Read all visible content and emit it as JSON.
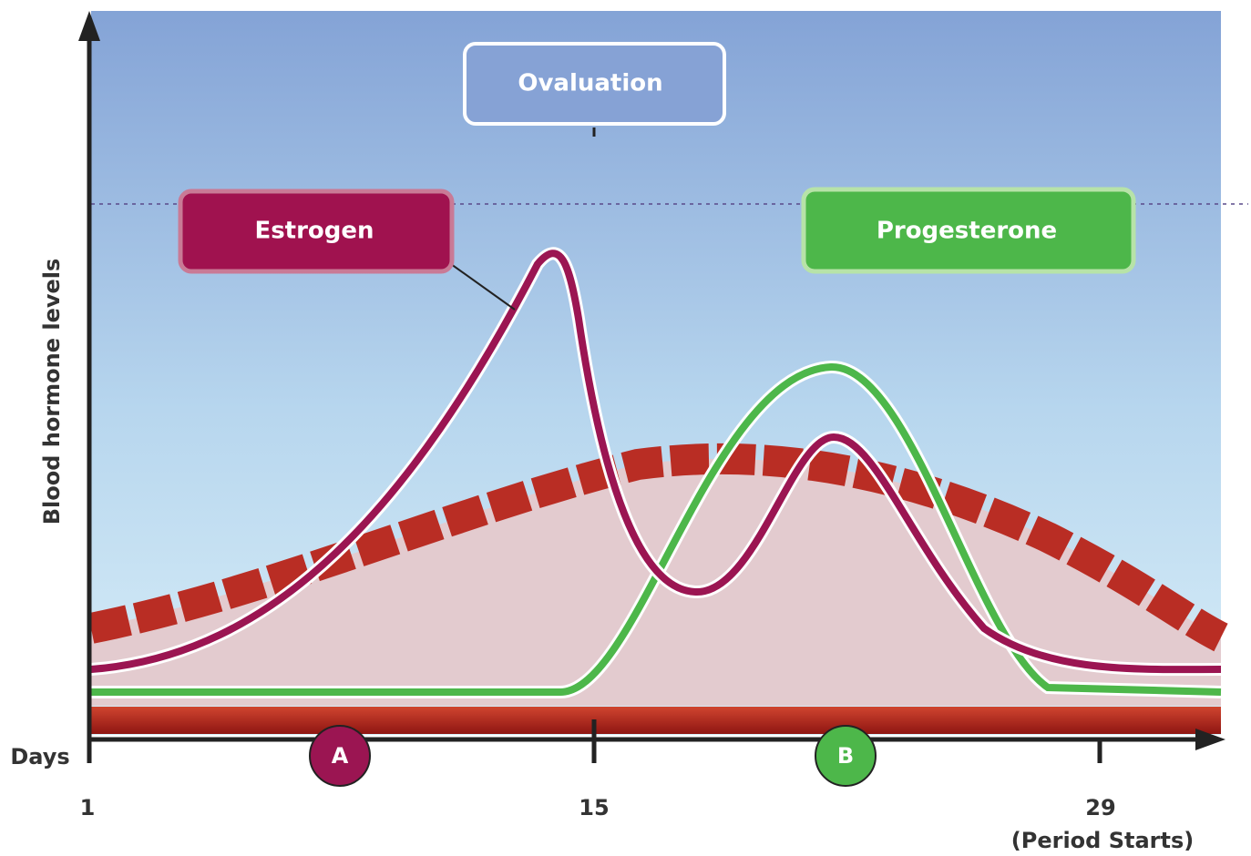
{
  "labels": {
    "ovulation": "Ovaluation",
    "estrogen": "Estrogen",
    "progesterone": "Progesterone"
  },
  "axes": {
    "y_label": "Blood hormone levels",
    "x_label": "Days",
    "ticks": [
      "1",
      "15",
      "29"
    ],
    "period_note": "(Period Starts)"
  },
  "markers": [
    "A",
    "B"
  ]
}
